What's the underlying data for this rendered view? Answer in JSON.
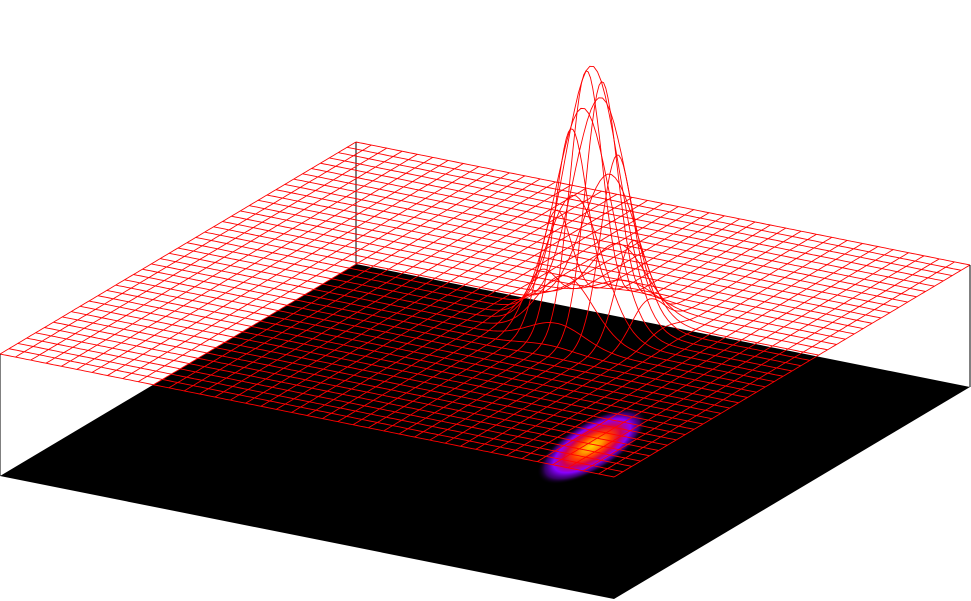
{
  "chart_data": {
    "type": "surface",
    "title": "",
    "xlabel": "",
    "ylabel": "",
    "zlabel": "",
    "x_range": [
      -1,
      1
    ],
    "y_range": [
      -1,
      1
    ],
    "z_range": [
      0,
      1
    ],
    "grid": true,
    "legend": "none",
    "axes_labels_shown": false,
    "wireframe": {
      "rows": 40,
      "cols": 40,
      "color": "#ff0000"
    },
    "peak": {
      "amplitude": 1.0,
      "center_x": 0.32,
      "center_y": 0.05,
      "sigma_x": 0.09,
      "sigma_y": 0.09
    },
    "projection": {
      "type": "heatmap",
      "background": "#000000",
      "colormap": [
        "#000000",
        "#5a00a8",
        "#8800ff",
        "#d4004a",
        "#ff3b00",
        "#ff9a00",
        "#ffd400"
      ],
      "sigma_major": 0.3,
      "sigma_minor": 0.12
    },
    "colors": {
      "box_edge": "#000000",
      "surface": "#ff0000",
      "floor": "#000000"
    }
  }
}
